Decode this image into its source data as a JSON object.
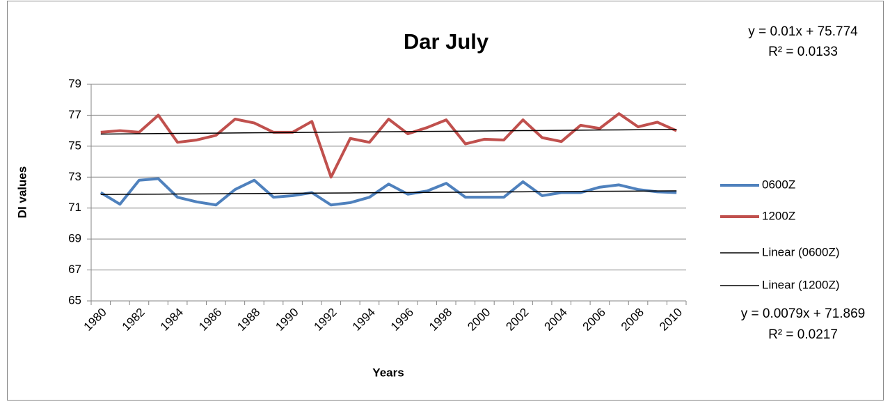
{
  "chart_data": {
    "type": "line",
    "title": "Dar July",
    "x_label": "Years",
    "y_label": "DI values",
    "categories": [
      "1980",
      null,
      "1982",
      null,
      "1984",
      null,
      "1986",
      null,
      "1988",
      null,
      "1990",
      null,
      "1992",
      null,
      "1994",
      null,
      "1996",
      null,
      "1998",
      null,
      "2000",
      null,
      "2002",
      null,
      "2004",
      null,
      "2006",
      null,
      "2008",
      null,
      "2010"
    ],
    "series": [
      {
        "name": "0600Z",
        "color": "#4f81bd",
        "width": 4,
        "values": [
          72.0,
          71.25,
          72.8,
          72.9,
          71.7,
          71.4,
          71.2,
          72.2,
          72.8,
          71.7,
          71.8,
          72.0,
          71.2,
          71.35,
          71.7,
          72.55,
          71.9,
          72.1,
          72.6,
          71.7,
          71.7,
          71.7,
          72.7,
          71.8,
          72.0,
          72.0,
          72.35,
          72.5,
          72.2,
          72.05,
          72.0
        ]
      },
      {
        "name": "1200Z",
        "color": "#c0504d",
        "width": 4,
        "values": [
          75.9,
          76.0,
          75.9,
          77.0,
          75.25,
          75.4,
          75.7,
          76.75,
          76.5,
          75.9,
          75.9,
          76.6,
          73.0,
          75.5,
          75.25,
          76.75,
          75.8,
          76.2,
          76.7,
          75.15,
          75.45,
          75.4,
          76.7,
          75.55,
          75.3,
          76.35,
          76.15,
          77.1,
          76.25,
          76.55,
          76.0
        ]
      },
      {
        "name": "Linear (0600Z)",
        "color": "#000000",
        "width": 1.5,
        "values": [
          71.877,
          71.885,
          71.893,
          71.901,
          71.909,
          71.916,
          71.924,
          71.932,
          71.94,
          71.948,
          71.956,
          71.964,
          71.972,
          71.98,
          71.988,
          71.995,
          72.003,
          72.011,
          72.019,
          72.027,
          72.035,
          72.043,
          72.051,
          72.059,
          72.067,
          72.074,
          72.082,
          72.09,
          72.098,
          72.106,
          72.114
        ]
      },
      {
        "name": "Linear (1200Z)",
        "color": "#000000",
        "width": 1.5,
        "values": [
          75.784,
          75.794,
          75.804,
          75.814,
          75.824,
          75.834,
          75.844,
          75.854,
          75.864,
          75.874,
          75.884,
          75.894,
          75.904,
          75.914,
          75.924,
          75.934,
          75.944,
          75.954,
          75.964,
          75.974,
          75.984,
          75.994,
          76.004,
          76.014,
          76.024,
          76.034,
          76.044,
          76.054,
          76.064,
          76.074,
          76.084
        ]
      }
    ],
    "annotations": [
      "y = 0.01x + 75.774",
      "R² = 0.0133",
      "y = 0.0079x + 71.869",
      "R² = 0.0217"
    ],
    "ylim": [
      65,
      79
    ],
    "yticks": [
      65,
      67,
      69,
      71,
      73,
      75,
      77,
      79
    ],
    "grid": true,
    "legend": "right"
  }
}
